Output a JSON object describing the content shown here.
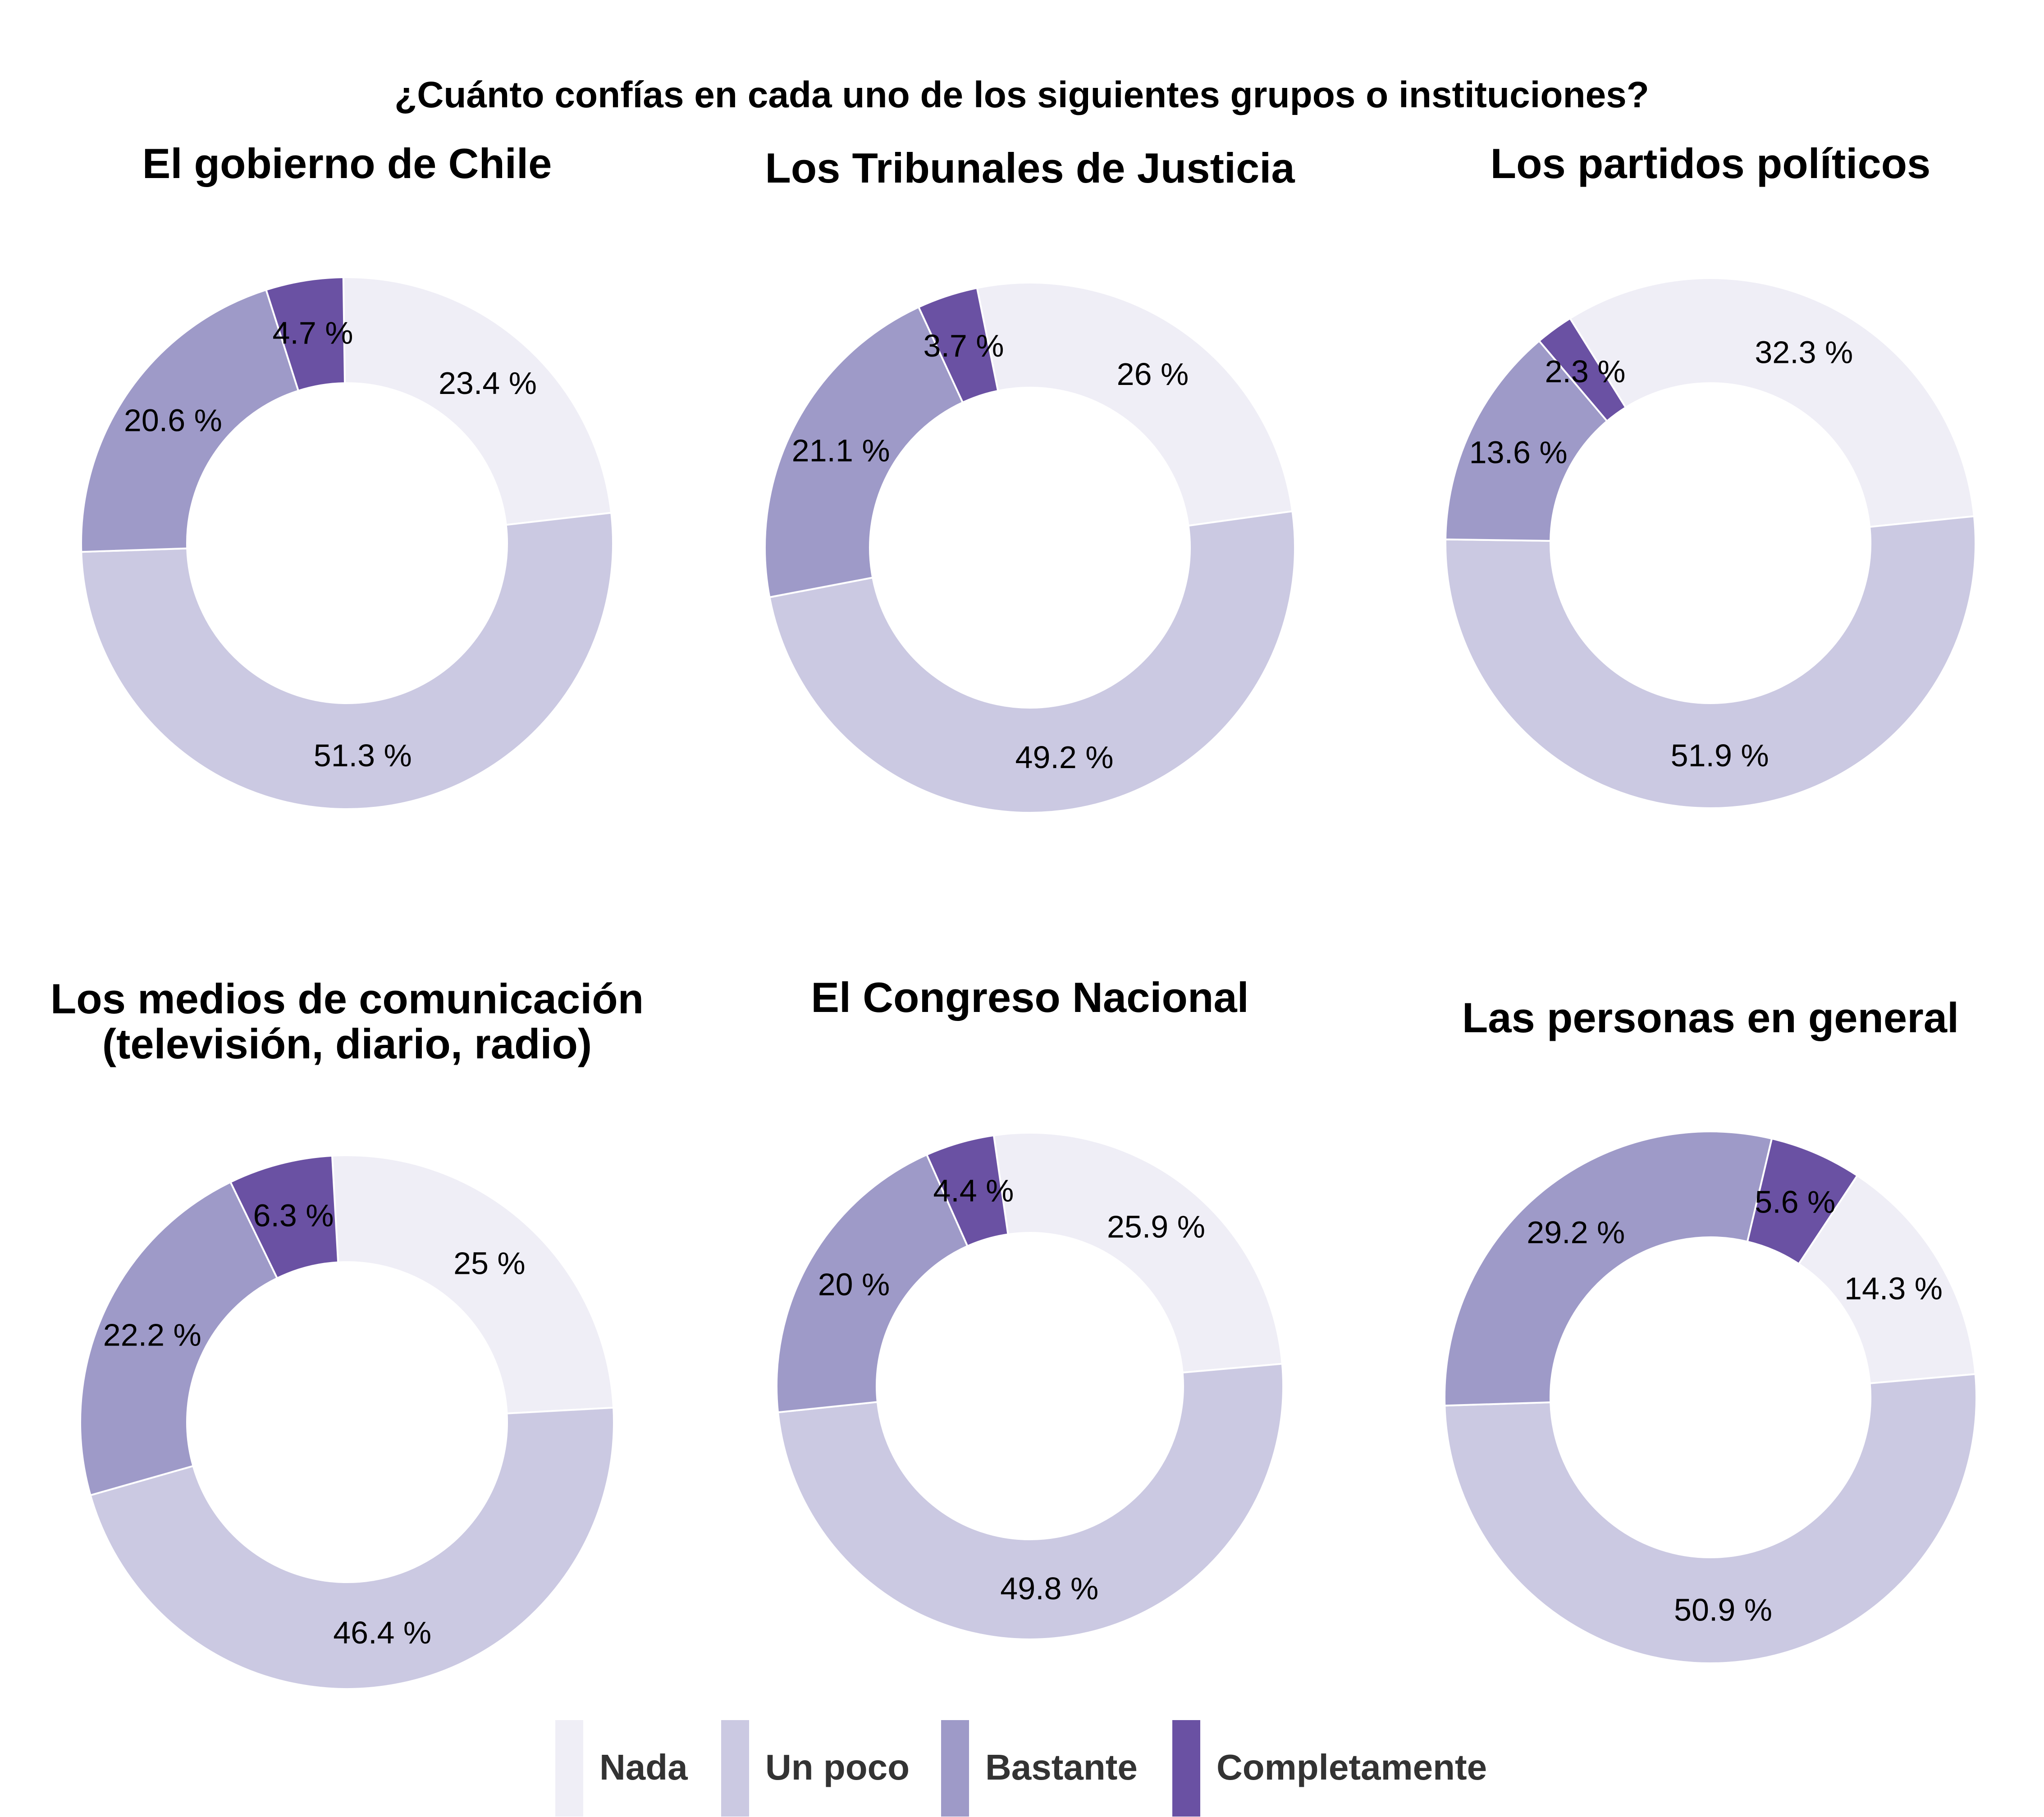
{
  "chart_data": {
    "type": "pie",
    "title": "¿Cuánto confías en cada uno de los siguientes grupos o instituciones?",
    "categories": [
      "Nada",
      "Un poco",
      "Bastante",
      "Completamente"
    ],
    "colors": [
      "#efeef6",
      "#cbc9e2",
      "#9e9ac8",
      "#6a51a3"
    ],
    "legend_position": "bottom",
    "value_suffix": " %",
    "charts": [
      {
        "title_lines": [
          "El gobierno de Chile"
        ],
        "values": [
          23.4,
          51.3,
          20.6,
          4.7
        ],
        "labels": [
          "23.4",
          "51.3",
          "20.6",
          "4.7"
        ]
      },
      {
        "title_lines": [
          "Los Tribunales de Justicia"
        ],
        "values": [
          26,
          49.2,
          21.1,
          3.7
        ],
        "labels": [
          "26",
          "49.2",
          "21.1",
          "3.7"
        ]
      },
      {
        "title_lines": [
          "Los partidos políticos"
        ],
        "values": [
          32.3,
          51.9,
          13.6,
          2.3
        ],
        "labels": [
          "32.3",
          "51.9",
          "13.6",
          "2.3"
        ]
      },
      {
        "title_lines": [
          "Los medios de comunicación",
          "(televisión, diario, radio)"
        ],
        "values": [
          25,
          46.4,
          22.2,
          6.3
        ],
        "labels": [
          "25",
          "46.4",
          "22.2",
          "6.3"
        ]
      },
      {
        "title_lines": [
          "El Congreso Nacional"
        ],
        "values": [
          25.9,
          49.8,
          20,
          4.4
        ],
        "labels": [
          "25.9",
          "49.8",
          "20",
          "4.4"
        ]
      },
      {
        "title_lines": [
          "Las personas en general"
        ],
        "values": [
          14.3,
          50.9,
          29.2,
          5.6
        ],
        "labels": [
          "14.3",
          "50.9",
          "29.2",
          "5.6"
        ]
      }
    ]
  }
}
